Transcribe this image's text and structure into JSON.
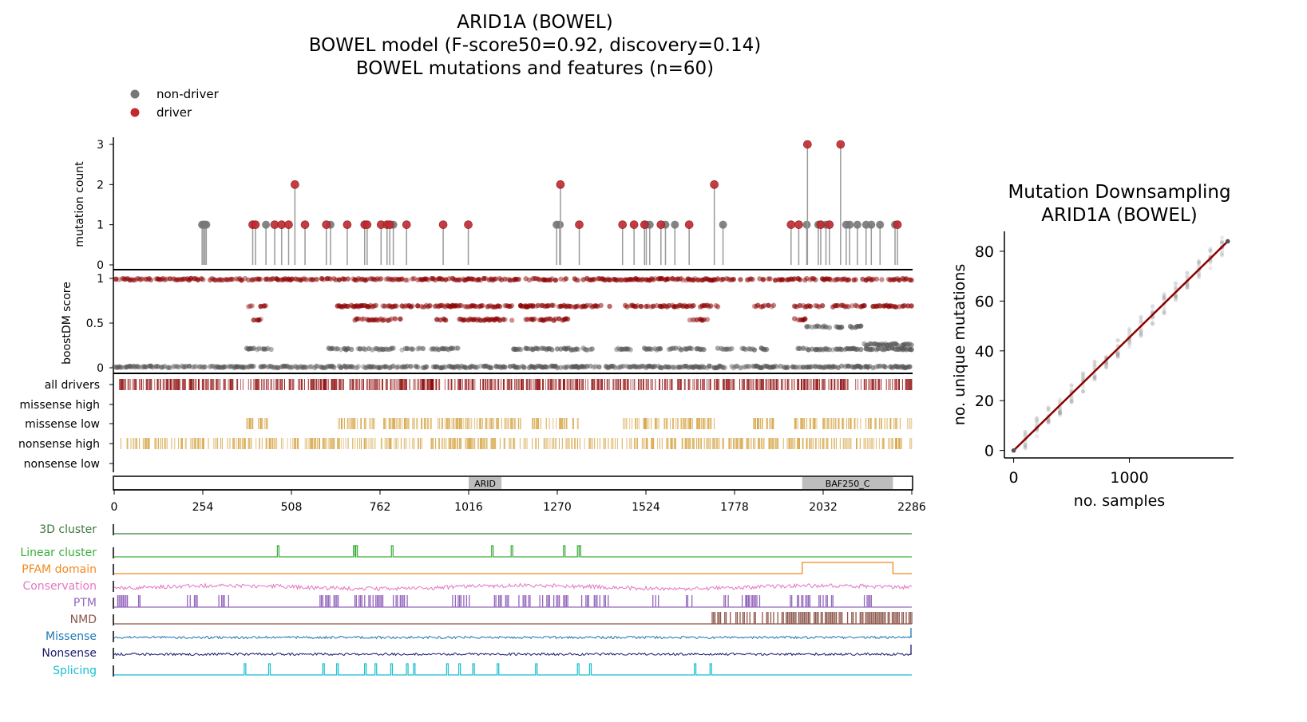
{
  "title_lines": [
    "ARID1A (BOWEL)",
    "BOWEL model (F-score50=0.92, discovery=0.14)",
    "BOWEL mutations and features (n=60)"
  ],
  "legend": [
    {
      "label": "non-driver",
      "color": "#777777"
    },
    {
      "label": "driver",
      "color": "#c0292f"
    }
  ],
  "colors": {
    "driver": "#c0292f",
    "nondriver": "#777777",
    "driver_bar": "#8b0000",
    "low_bar": "#d4a03c",
    "domain_fill": "#bdbdbd"
  },
  "chart_data": [
    {
      "type": "scatter",
      "name": "lollipop",
      "xlim": [
        0,
        2286
      ],
      "ylim": [
        0,
        3
      ],
      "ylabel": "mutation count",
      "y_ticks": [
        0,
        1,
        2,
        3
      ],
      "nondriver_positions": [
        252,
        256,
        260,
        264,
        435,
        620,
        800,
        1268,
        1277,
        1525,
        1535,
        1580,
        1607,
        1745,
        1985,
        2018,
        2040,
        2098,
        2108,
        2130,
        2155,
        2170,
        2195,
        2238
      ],
      "driver_points": [
        {
          "x": 397,
          "y": 1
        },
        {
          "x": 405,
          "y": 1
        },
        {
          "x": 460,
          "y": 1
        },
        {
          "x": 480,
          "y": 1
        },
        {
          "x": 500,
          "y": 1
        },
        {
          "x": 518,
          "y": 2
        },
        {
          "x": 547,
          "y": 1
        },
        {
          "x": 608,
          "y": 1
        },
        {
          "x": 668,
          "y": 1
        },
        {
          "x": 718,
          "y": 1
        },
        {
          "x": 725,
          "y": 1
        },
        {
          "x": 765,
          "y": 1
        },
        {
          "x": 782,
          "y": 1
        },
        {
          "x": 790,
          "y": 1
        },
        {
          "x": 838,
          "y": 1
        },
        {
          "x": 943,
          "y": 1
        },
        {
          "x": 1015,
          "y": 1
        },
        {
          "x": 1279,
          "y": 2
        },
        {
          "x": 1333,
          "y": 1
        },
        {
          "x": 1457,
          "y": 1
        },
        {
          "x": 1490,
          "y": 1
        },
        {
          "x": 1520,
          "y": 1
        },
        {
          "x": 1567,
          "y": 1
        },
        {
          "x": 1648,
          "y": 1
        },
        {
          "x": 1720,
          "y": 2
        },
        {
          "x": 1940,
          "y": 1
        },
        {
          "x": 1962,
          "y": 1
        },
        {
          "x": 1987,
          "y": 3
        },
        {
          "x": 2025,
          "y": 1
        },
        {
          "x": 2050,
          "y": 1
        },
        {
          "x": 2082,
          "y": 3
        },
        {
          "x": 2245,
          "y": 1
        }
      ]
    },
    {
      "type": "scatter",
      "name": "boostDM",
      "xlim": [
        0,
        2286
      ],
      "ylim": [
        0,
        1
      ],
      "ylabel": "boostDM score",
      "y_ticks": [
        "0",
        "0.5",
        "1"
      ],
      "driver_bands": [
        {
          "y": 0.99,
          "ranges": [
            [
              0,
              2286
            ]
          ]
        },
        {
          "y": 0.69,
          "ranges": [
            [
              380,
              440
            ],
            [
              640,
              750
            ],
            [
              770,
              870
            ],
            [
              880,
              1200
            ],
            [
              1160,
              1330
            ],
            [
              1340,
              1420
            ],
            [
              1460,
              1660
            ],
            [
              1680,
              1730
            ],
            [
              1830,
              1890
            ],
            [
              1950,
              2030
            ],
            [
              2060,
              2150
            ],
            [
              2170,
              2286
            ]
          ]
        },
        {
          "y": 0.54,
          "ranges": [
            [
              400,
              420
            ],
            [
              690,
              820
            ],
            [
              920,
              950
            ],
            [
              990,
              1140
            ],
            [
              1180,
              1300
            ],
            [
              1650,
              1700
            ],
            [
              1950,
              1980
            ]
          ]
        }
      ],
      "nondriver_bands": [
        {
          "y": 0.21,
          "ranges": [
            [
              380,
              450
            ],
            [
              600,
              680
            ],
            [
              700,
              800
            ],
            [
              820,
              990
            ],
            [
              1140,
              1270
            ],
            [
              1280,
              1370
            ],
            [
              1440,
              1480
            ],
            [
              1520,
              1570
            ],
            [
              1580,
              1690
            ],
            [
              1720,
              1770
            ],
            [
              1800,
              1870
            ],
            [
              1960,
              2040
            ],
            [
              2040,
              2140
            ],
            [
              2150,
              2286
            ]
          ]
        },
        {
          "y": 0.46,
          "ranges": [
            [
              1980,
              2000
            ],
            [
              2010,
              2050
            ],
            [
              2070,
              2140
            ]
          ]
        },
        {
          "y": 0.26,
          "ranges": [
            [
              2150,
              2286
            ]
          ]
        },
        {
          "y": 0.01,
          "ranges": [
            [
              0,
              2286
            ]
          ]
        }
      ]
    },
    {
      "type": "heatmap",
      "name": "mutation-classes",
      "xlim": [
        0,
        2286
      ],
      "rows": [
        {
          "label": "all drivers",
          "color": "#8b0000",
          "ranges": [
            [
              15,
              370
            ],
            [
              385,
              2286
            ]
          ],
          "density": 0.55
        },
        {
          "label": "missense high",
          "color": "#8b0000",
          "ranges": [],
          "density": 0
        },
        {
          "label": "missense low",
          "color": "#d4a03c",
          "ranges": [
            [
              380,
              440
            ],
            [
              640,
              750
            ],
            [
              770,
              870
            ],
            [
              880,
              1000
            ],
            [
              985,
              1170
            ],
            [
              1190,
              1300
            ],
            [
              1310,
              1330
            ],
            [
              1460,
              1540
            ],
            [
              1550,
              1660
            ],
            [
              1665,
              1730
            ],
            [
              1830,
              1860
            ],
            [
              1870,
              1890
            ],
            [
              1950,
              2060
            ],
            [
              2060,
              2170
            ],
            [
              2180,
              2260
            ],
            [
              2270,
              2286
            ]
          ],
          "density": 0.5
        },
        {
          "label": "nonsense high",
          "color": "#d4a03c",
          "ranges": [
            [
              15,
              2286
            ]
          ],
          "density": 0.45
        },
        {
          "label": "nonsense low",
          "color": "#d4a03c",
          "ranges": [],
          "density": 0
        }
      ]
    },
    {
      "type": "bar",
      "name": "protein-domains",
      "xlim": [
        0,
        2286
      ],
      "x_ticks": [
        0,
        254,
        508,
        762,
        1016,
        1270,
        1524,
        1778,
        2032,
        2286
      ],
      "domains": [
        {
          "label": "ARID",
          "start": 1016,
          "end": 1110
        },
        {
          "label": "BAF250_C",
          "start": 1972,
          "end": 2232
        }
      ]
    },
    {
      "type": "line",
      "name": "feature-tracks",
      "xlim": [
        0,
        2286
      ],
      "tracks": [
        {
          "label": "3D cluster",
          "color": "#3b7a3b",
          "kind": "flat"
        },
        {
          "label": "Linear cluster",
          "color": "#3bac3b",
          "kind": "spikes",
          "positions": [
            470,
            688,
            695,
            797,
            1084,
            1140,
            1290,
            1330,
            1335
          ]
        },
        {
          "label": "PFAM domain",
          "color": "#f4891f",
          "kind": "step",
          "ranges": [
            [
              1972,
              2232
            ]
          ]
        },
        {
          "label": "Conservation",
          "color": "#e377c2",
          "kind": "noise"
        },
        {
          "label": "PTM",
          "color": "#9467bd",
          "kind": "bars",
          "ranges": [
            [
              10,
              40
            ],
            [
              50,
              80
            ],
            [
              210,
              240
            ],
            [
              300,
              330
            ],
            [
              590,
              650
            ],
            [
              690,
              780
            ],
            [
              800,
              840
            ],
            [
              970,
              1020
            ],
            [
              1090,
              1130
            ],
            [
              1160,
              1200
            ],
            [
              1220,
              1300
            ],
            [
              1340,
              1420
            ],
            [
              1540,
              1560
            ],
            [
              1640,
              1660
            ],
            [
              1740,
              1760
            ],
            [
              1800,
              1820
            ],
            [
              1810,
              1850
            ],
            [
              1930,
              2000
            ],
            [
              2020,
              2060
            ],
            [
              2150,
              2170
            ]
          ]
        },
        {
          "label": "NMD",
          "color": "#8c564b",
          "kind": "bars",
          "ranges": [
            [
              1710,
              2286
            ]
          ]
        },
        {
          "label": "Missense",
          "color": "#1f77b4",
          "kind": "noise"
        },
        {
          "label": "Nonsense",
          "color": "#1a1a6e",
          "kind": "noise"
        },
        {
          "label": "Splicing",
          "color": "#17becf",
          "kind": "spikes",
          "positions": [
            375,
            445,
            600,
            640,
            720,
            750,
            795,
            840,
            860,
            955,
            990,
            1030,
            1100,
            1210,
            1330,
            1365,
            1665,
            1710
          ]
        }
      ]
    },
    {
      "type": "scatter",
      "name": "downsampling",
      "title": "Mutation Downsampling\nARID1A (BOWEL)",
      "xlabel": "no. samples",
      "ylabel": "no. unique mutations",
      "xlim": [
        -80,
        1900
      ],
      "ylim": [
        -3,
        88
      ],
      "x_ticks": [
        0,
        1000
      ],
      "y_ticks": [
        0,
        20,
        40,
        60,
        80
      ],
      "fit_line": [
        [
          0,
          0
        ],
        [
          1850,
          84
        ]
      ],
      "sample_steps": [
        0,
        100,
        200,
        300,
        400,
        500,
        600,
        700,
        800,
        900,
        1000,
        1100,
        1200,
        1300,
        1400,
        1500,
        1600,
        1700,
        1800
      ],
      "spread": 4
    }
  ]
}
